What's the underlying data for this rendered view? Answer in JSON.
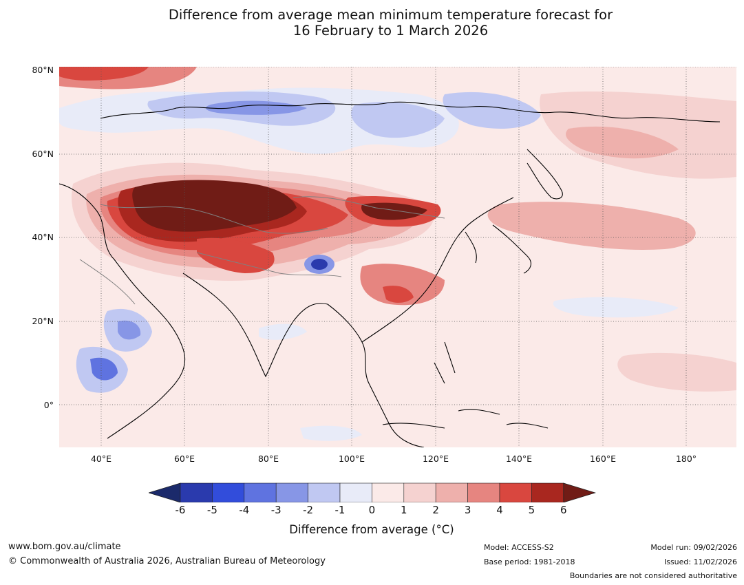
{
  "title": {
    "line1": "Difference from average mean minimum temperature forecast for",
    "line2": "16 February to 1 March 2026"
  },
  "map": {
    "lat_labels": [
      "80°N",
      "60°N",
      "40°N",
      "20°N",
      "0°"
    ],
    "lon_labels": [
      "40°E",
      "60°E",
      "80°E",
      "100°E",
      "120°E",
      "140°E",
      "160°E",
      "180°"
    ],
    "extent": {
      "lon_min": 30,
      "lon_max": 192,
      "lat_min": -10,
      "lat_max": 81
    },
    "colors": {
      "land": "#fbeae8",
      "coast": "#000000",
      "border": "#808080",
      "grid": "#555555"
    }
  },
  "colorbar": {
    "title": "Difference from average (°C)",
    "ticks": [
      "-6",
      "-5",
      "-4",
      "-3",
      "-2",
      "-1",
      "0",
      "1",
      "2",
      "3",
      "4",
      "5",
      "6"
    ],
    "colors": [
      "#1b2a6b",
      "#2a3aad",
      "#324ddb",
      "#5f73e0",
      "#8796e6",
      "#c0c8f2",
      "#e8ebf8",
      "#fbeae8",
      "#f5d2d0",
      "#eeb0ac",
      "#e68580",
      "#d9473f",
      "#a9271f",
      "#701c16"
    ]
  },
  "footer": {
    "url": "www.bom.gov.au/climate",
    "copyright": "© Commonwealth of Australia 2026, Australian Bureau of Meteorology",
    "model": "Model: ACCESS-S2",
    "base_period": "Base period: 1981-2018",
    "model_run": "Model run: 09/02/2026",
    "issued": "Issued: 11/02/2026",
    "disclaimer": "Boundaries are not considered authoritative"
  }
}
